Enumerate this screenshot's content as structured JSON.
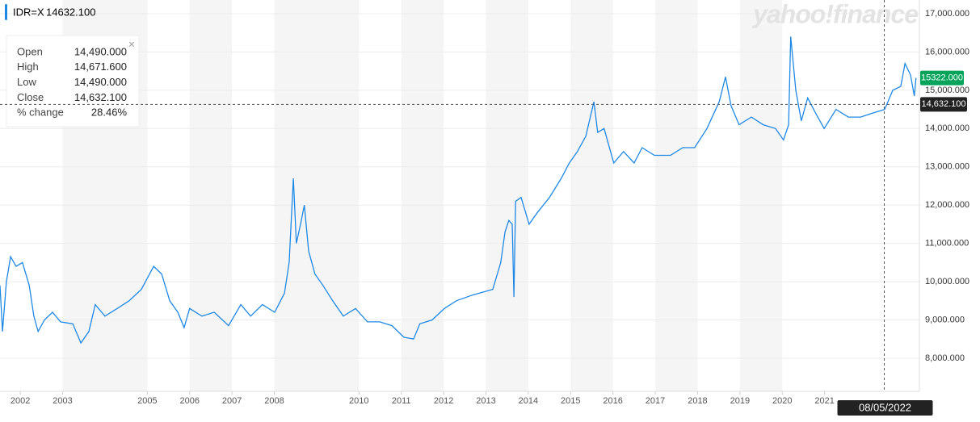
{
  "chart_data": {
    "type": "line",
    "brand": "yahoo!finance",
    "quote_price": "14632.100",
    "tooltip": [
      {
        "label": "Open",
        "value": "14,490.000"
      },
      {
        "label": "High",
        "value": "14,671.600"
      },
      {
        "label": "Low",
        "value": "14,490.000"
      },
      {
        "label": "Close",
        "value": "14,632.100"
      },
      {
        "label": "% change",
        "value": "28.46%"
      }
    ],
    "series": [
      {
        "name": "IDR=X",
        "color": "#1e88e5",
        "x": [
          2001.52,
          2001.58,
          2001.67,
          2001.77,
          2001.9,
          2002.05,
          2002.21,
          2002.32,
          2002.42,
          2002.57,
          2002.76,
          2002.95,
          2003.24,
          2003.43,
          2003.62,
          2003.77,
          2004.0,
          2004.29,
          2004.57,
          2004.86,
          2005.15,
          2005.34,
          2005.53,
          2005.72,
          2005.87,
          2006.0,
          2006.29,
          2006.58,
          2006.92,
          2007.21,
          2007.44,
          2007.72,
          2008.01,
          2008.24,
          2008.35,
          2008.45,
          2008.52,
          2008.62,
          2008.71,
          2008.81,
          2008.96,
          2009.15,
          2009.38,
          2009.63,
          2009.92,
          2010.2,
          2010.49,
          2010.78,
          2011.06,
          2011.29,
          2011.44,
          2011.73,
          2012.02,
          2012.3,
          2012.68,
          2013.16,
          2013.35,
          2013.45,
          2013.54,
          2013.62,
          2013.66,
          2013.7,
          2013.83,
          2014.02,
          2014.21,
          2014.5,
          2014.78,
          2014.97,
          2015.16,
          2015.36,
          2015.55,
          2015.64,
          2015.79,
          2016.02,
          2016.25,
          2016.5,
          2016.69,
          2016.98,
          2017.36,
          2017.65,
          2017.93,
          2018.22,
          2018.51,
          2018.66,
          2018.79,
          2018.98,
          2019.27,
          2019.55,
          2019.84,
          2020.03,
          2020.15,
          2020.2,
          2020.32,
          2020.45,
          2020.6,
          2020.79,
          2020.99,
          2021.27,
          2021.56,
          2021.85,
          2022.13,
          2022.42,
          2022.61,
          2022.8,
          2022.9,
          2023.03,
          2023.12,
          2023.16
        ],
        "values": [
          9900,
          8700,
          10000,
          10650,
          10400,
          10500,
          9900,
          9100,
          8700,
          9000,
          9200,
          8950,
          8900,
          8400,
          8700,
          9400,
          9100,
          9300,
          9500,
          9800,
          10400,
          10200,
          9500,
          9200,
          8800,
          9300,
          9100,
          9200,
          8850,
          9400,
          9100,
          9400,
          9200,
          9700,
          10500,
          12700,
          11000,
          11500,
          12000,
          10800,
          10200,
          9900,
          9500,
          9100,
          9300,
          8950,
          8950,
          8850,
          8550,
          8500,
          8900,
          9000,
          9300,
          9500,
          9650,
          9800,
          10500,
          11300,
          11600,
          11500,
          9600,
          12100,
          12200,
          11500,
          11800,
          12200,
          12700,
          13100,
          13400,
          13800,
          14700,
          13900,
          14000,
          13100,
          13400,
          13100,
          13500,
          13300,
          13300,
          13500,
          13500,
          14000,
          14700,
          15350,
          14600,
          14100,
          14300,
          14100,
          14000,
          13700,
          14100,
          16400,
          15000,
          14200,
          14800,
          14400,
          14000,
          14500,
          14300,
          14300,
          14400,
          14500,
          15000,
          15100,
          15700,
          15400,
          14850,
          15322
        ]
      }
    ],
    "current_price": {
      "value": 15322,
      "label": "15322.000"
    },
    "crosshair": {
      "value": 14632.1,
      "label": "14,632.100",
      "x": 2022.41,
      "date": "08/05/2022"
    },
    "xlim": [
      2001.52,
      2023.24
    ],
    "xticks": [
      2002,
      2003,
      2005,
      2006,
      2007,
      2008,
      2010,
      2011,
      2012,
      2013,
      2014,
      2015,
      2016,
      2017,
      2018,
      2019,
      2020,
      2021
    ],
    "ylim": [
      7135,
      17358
    ],
    "yticks": [
      {
        "value": 8000,
        "label": "8,000.000"
      },
      {
        "value": 9000,
        "label": "9,000.000"
      },
      {
        "value": 10000,
        "label": "10,000.000"
      },
      {
        "value": 11000,
        "label": "11,000.000"
      },
      {
        "value": 12000,
        "label": "12,000.000"
      },
      {
        "value": 13000,
        "label": "13,000.000"
      },
      {
        "value": 14000,
        "label": "14,000.000"
      },
      {
        "value": 15000,
        "label": "15,000.000"
      },
      {
        "value": 16000,
        "label": "16,000.000"
      },
      {
        "value": 17000,
        "label": "17,000.000"
      }
    ],
    "grid": true
  }
}
